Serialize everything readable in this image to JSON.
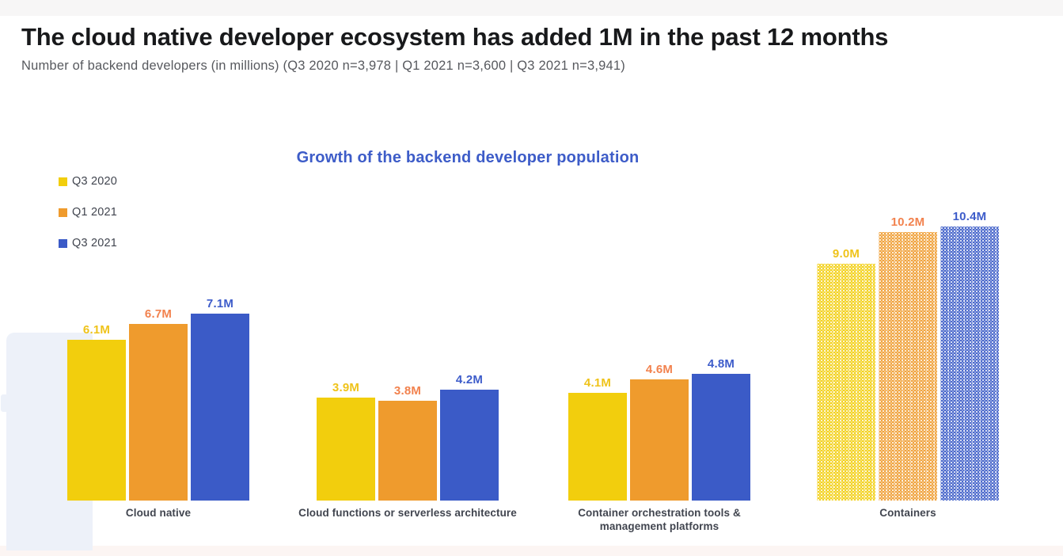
{
  "header": {
    "title": "The cloud native developer ecosystem has added 1M in the past 12 months",
    "subtitle": "Number of backend developers (in millions) (Q3 2020 n=3,978 | Q1 2021 n=3,600 | Q3 2021 n=3,941)"
  },
  "chart_data": {
    "type": "bar",
    "title": "Growth of the backend developer population",
    "categories": [
      "Cloud native",
      "Cloud functions or serverless architecture",
      "Container orchestration tools & management platforms",
      "Containers"
    ],
    "series": [
      {
        "name": "Q3 2020",
        "color": "#F2CE0D",
        "label_color": "#EFC31A",
        "values": [
          6.1,
          3.9,
          4.1,
          9.0
        ],
        "labels": [
          "6.1M",
          "3.9M",
          "4.1M",
          "9.0M"
        ]
      },
      {
        "name": "Q1 2021",
        "color": "#EF9B2D",
        "label_color": "#F2824E",
        "values": [
          6.7,
          3.8,
          4.6,
          10.2
        ],
        "labels": [
          "6.7M",
          "3.8M",
          "4.6M",
          "10.2M"
        ]
      },
      {
        "name": "Q3 2021",
        "color": "#3B5BC7",
        "label_color": "#3D5CCA",
        "values": [
          7.1,
          4.2,
          4.8,
          10.4
        ],
        "labels": [
          "7.1M",
          "4.2M",
          "4.8M",
          "10.4M"
        ]
      }
    ],
    "patterned_categories": [
      "Containers"
    ],
    "unit": "M",
    "grid": false,
    "legend_position": "top-left",
    "ylim": [
      0,
      10.4
    ]
  }
}
